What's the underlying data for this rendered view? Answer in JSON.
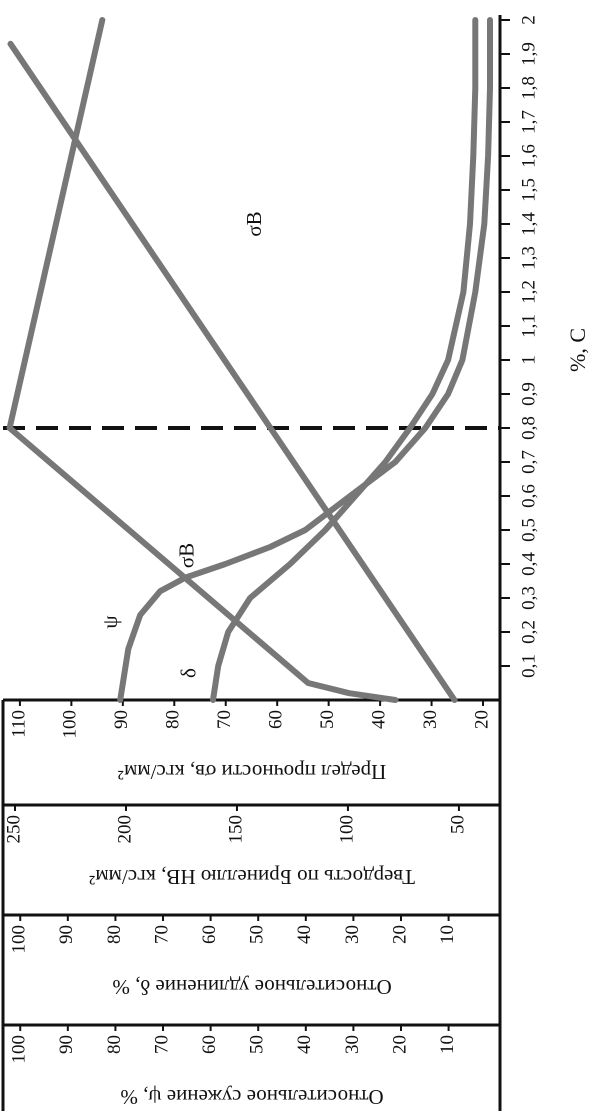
{
  "chart_data": {
    "type": "line",
    "xlabel": "%, C",
    "xlim": [
      0,
      2
    ],
    "xticks": [
      {
        "value": 0.1,
        "label": "0,1"
      },
      {
        "value": 0.2,
        "label": "0,2"
      },
      {
        "value": 0.3,
        "label": "0,3"
      },
      {
        "value": 0.4,
        "label": "0,4"
      },
      {
        "value": 0.5,
        "label": "0,5"
      },
      {
        "value": 0.6,
        "label": "0,6"
      },
      {
        "value": 0.7,
        "label": "0,7"
      },
      {
        "value": 0.8,
        "label": "0,8"
      },
      {
        "value": 0.9,
        "label": "0,9"
      },
      1,
      {
        "value": 1.1,
        "label": "1,1"
      },
      {
        "value": 1.2,
        "label": "1,2"
      },
      {
        "value": 1.3,
        "label": "1,3"
      },
      {
        "value": 1.4,
        "label": "1,4"
      },
      {
        "value": 1.5,
        "label": "1,5"
      },
      {
        "value": 1.6,
        "label": "1,6"
      },
      {
        "value": 1.7,
        "label": "1,7"
      },
      {
        "value": 1.8,
        "label": "1,8"
      },
      {
        "value": 1.9,
        "label": "1,9"
      },
      2
    ],
    "ylabel": "Предел прочности σв, кгс/мм²",
    "ylim": [
      16.7,
      112.9
    ],
    "yticks": [
      20,
      30,
      40,
      50,
      60,
      70,
      80,
      90,
      100,
      110
    ],
    "y2label": "Твердость по Бринеллю НВ, кгс/мм²",
    "y2lim": [
      31.5,
      254.5
    ],
    "y2ticks": [
      50,
      100,
      150,
      200,
      250
    ],
    "y3label": "Относительное удлинение δ, %",
    "y3lim": [
      -0.8,
      103.2
    ],
    "y3ticks": [
      10,
      20,
      30,
      40,
      50,
      60,
      70,
      80,
      90,
      100
    ],
    "y4label": "Относительное сужение ψ, %",
    "y4lim": [
      -0.8,
      103.2
    ],
    "y4ticks": [
      10,
      20,
      30,
      40,
      50,
      60,
      70,
      80,
      90,
      100
    ],
    "reference_x": 0.8,
    "series": [
      {
        "name": "σB",
        "axis": "y",
        "color": "#777777",
        "x": [
          0,
          0.02,
          0.05,
          0.8,
          2.0
        ],
        "values": [
          37,
          46,
          54,
          112,
          94
        ]
      },
      {
        "name": "HB",
        "axis": "y2",
        "color": "#777777",
        "x": [
          0,
          1.93
        ],
        "values": [
          52,
          252
        ]
      },
      {
        "name": "δ",
        "axis": "y3",
        "color": "#777777",
        "x": [
          0,
          0.1,
          0.2,
          0.3,
          0.4,
          0.5,
          0.6,
          0.7,
          0.8,
          0.9,
          1.0,
          1.2,
          1.4,
          1.6,
          1.8,
          2.0
        ],
        "values": [
          59.5,
          58.4,
          56.3,
          51.7,
          43.3,
          35.9,
          29.6,
          23.3,
          18.1,
          13.4,
          10.1,
          6.9,
          5.5,
          4.8,
          4.4,
          4.4
        ]
      },
      {
        "name": "ψ",
        "axis": "y4",
        "color": "#777777",
        "x": [
          0,
          0.15,
          0.25,
          0.32,
          0.36,
          0.4,
          0.45,
          0.5,
          0.6,
          0.7,
          0.8,
          0.9,
          1.0,
          1.2,
          1.4,
          1.6,
          1.8,
          2.0
        ],
        "values": [
          79,
          77.3,
          74.8,
          70.6,
          65.3,
          56.9,
          47.5,
          40.1,
          30.7,
          21.2,
          14.9,
          10.1,
          7.1,
          4.4,
          2.5,
          1.7,
          1.3,
          1.3
        ]
      }
    ]
  }
}
